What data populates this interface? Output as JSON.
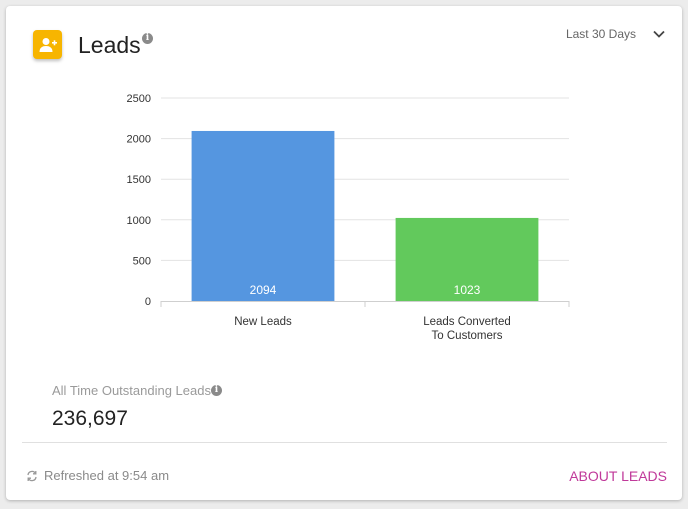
{
  "header": {
    "title": "Leads",
    "icon": "add-user-icon",
    "accent_color": "#f7b500"
  },
  "range_select": {
    "label": "Last 30 Days"
  },
  "chart_data": {
    "type": "bar",
    "categories": [
      [
        "New Leads"
      ],
      [
        "Leads Converted",
        "To Customers"
      ]
    ],
    "values": [
      2094,
      1023
    ],
    "colors": [
      "#5596e0",
      "#62c95c"
    ],
    "yticks": [
      0,
      500,
      1000,
      1500,
      2000,
      2500
    ],
    "ylim": [
      0,
      2500
    ],
    "grid": true,
    "title": "",
    "xlabel": "",
    "ylabel": ""
  },
  "stats": {
    "outstanding_label": "All Time Outstanding Leads",
    "outstanding_value": "236,697"
  },
  "footer": {
    "refreshed_text": "Refreshed at 9:54 am",
    "about_link": "ABOUT LEADS",
    "link_color": "#c0399a"
  }
}
